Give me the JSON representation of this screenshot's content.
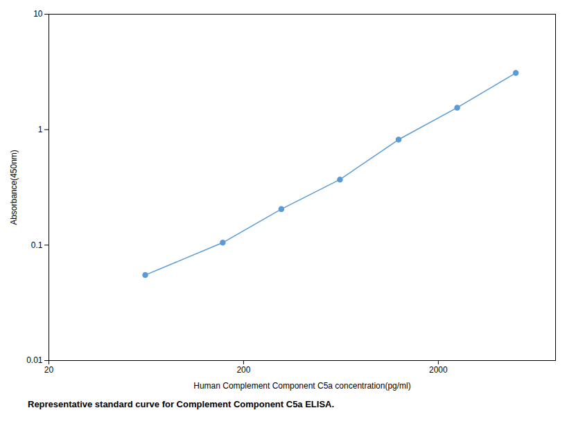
{
  "chart_data": {
    "type": "line",
    "x": [
      62.5,
      156.25,
      312.5,
      625,
      1250,
      2500,
      5000
    ],
    "values": [
      0.055,
      0.105,
      0.205,
      0.37,
      0.82,
      1.55,
      3.1
    ],
    "color": "#5b9bd5",
    "marker": "circle",
    "xlabel": "Human Complement Component C5a concentration(pg/ml)",
    "ylabel": "Absorbance(450nm)",
    "caption": "Representative standard curve for Complement Component C5a ELISA.",
    "log": true,
    "xlim": [
      20,
      8000
    ],
    "xticks": [
      20,
      200,
      2000
    ],
    "ylim": [
      0.01,
      10
    ],
    "yticks": [
      0.01,
      0.1,
      1,
      10
    ],
    "grid": false
  }
}
